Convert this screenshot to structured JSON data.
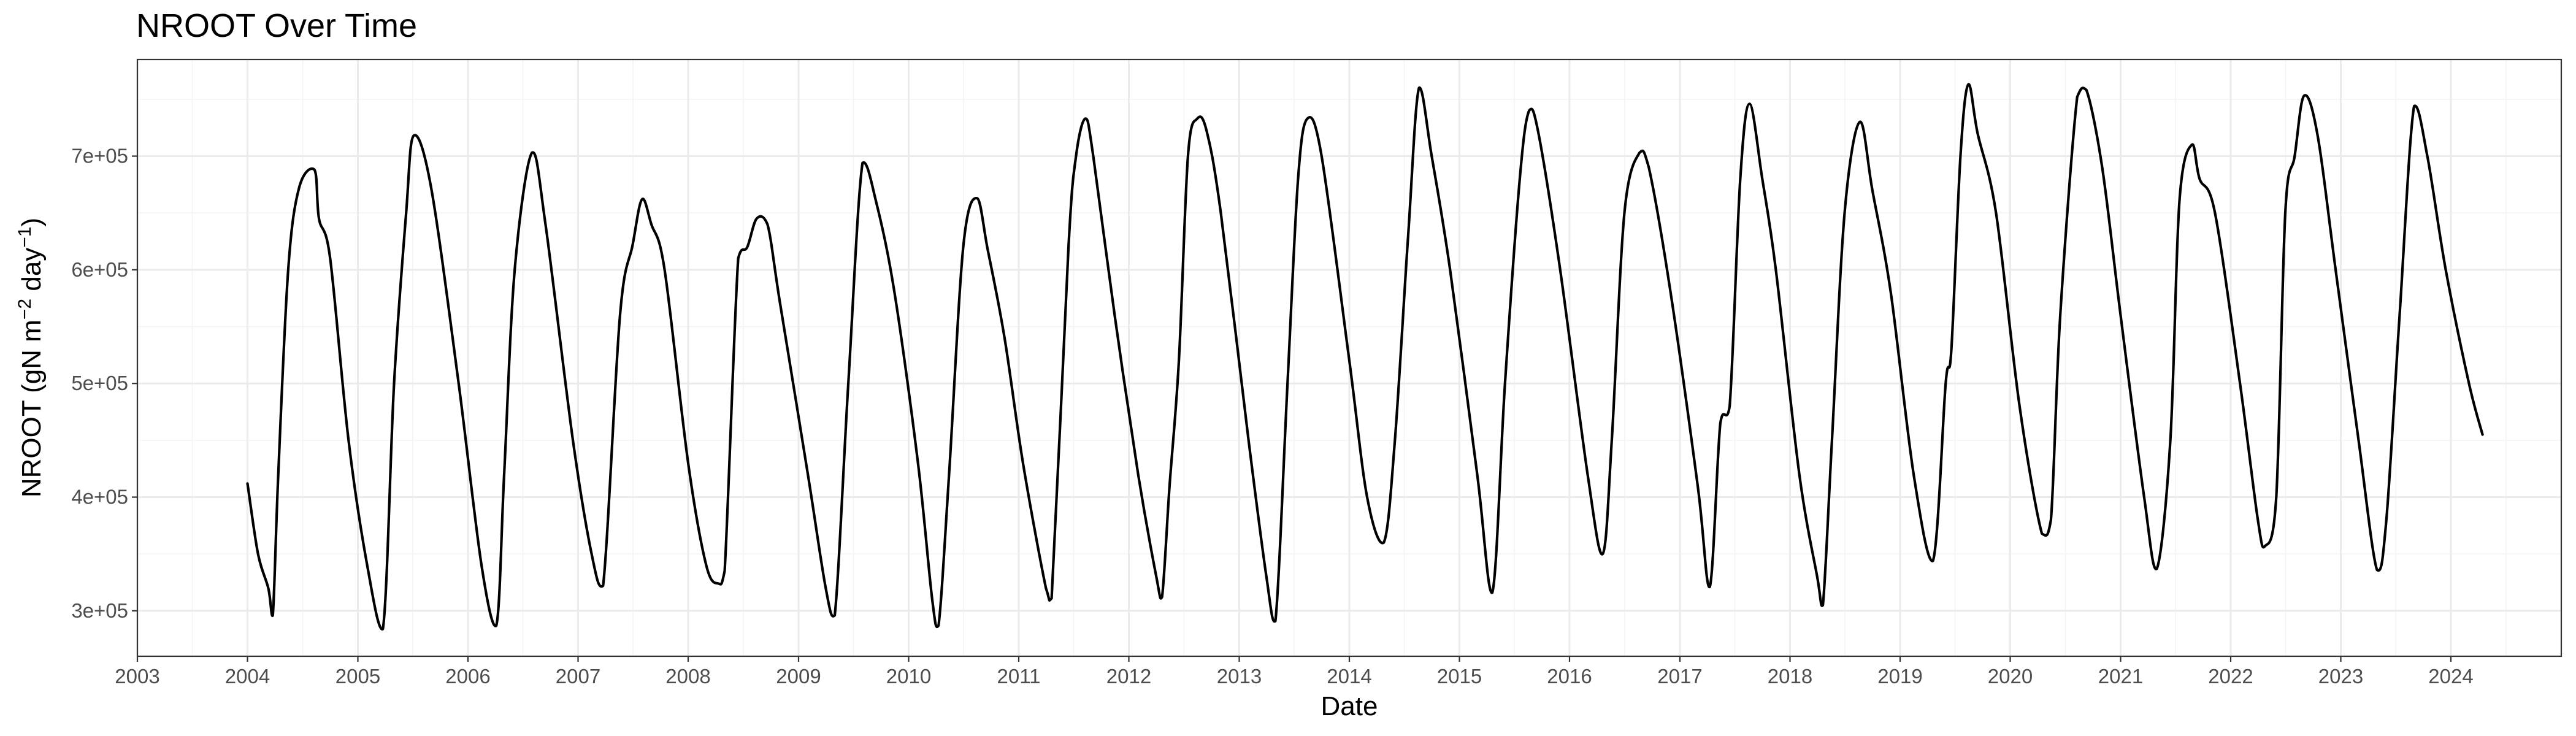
{
  "chart_data": {
    "type": "line",
    "title": "NROOT Over Time",
    "xlabel": "Date",
    "ylabel_parts": [
      "NROOT (gN m",
      "−2",
      " day",
      "−1",
      ")"
    ],
    "x_ticks": [
      "2003",
      "2004",
      "2005",
      "2006",
      "2007",
      "2008",
      "2009",
      "2010",
      "2011",
      "2012",
      "2013",
      "2014",
      "2015",
      "2016",
      "2017",
      "2018",
      "2019",
      "2020",
      "2021",
      "2022",
      "2023",
      "2024"
    ],
    "y_ticks": [
      {
        "value": 300000,
        "label": "3e+05"
      },
      {
        "value": 400000,
        "label": "4e+05"
      },
      {
        "value": 500000,
        "label": "5e+05"
      },
      {
        "value": 600000,
        "label": "6e+05"
      },
      {
        "value": 700000,
        "label": "7e+05"
      }
    ],
    "xlim": [
      "2003-01-01",
      "2024-12-31"
    ],
    "ylim": [
      260000,
      785000
    ],
    "grid": true,
    "line_color": "#000000",
    "series": [
      {
        "points": [
          [
            "2004-01-01",
            412000
          ],
          [
            "2004-02-05",
            350000
          ],
          [
            "2004-03-10",
            320000
          ],
          [
            "2004-03-25",
            296000
          ],
          [
            "2004-04-12",
            420000
          ],
          [
            "2004-05-15",
            600000
          ],
          [
            "2004-06-20",
            672000
          ],
          [
            "2004-08-10",
            688000
          ],
          [
            "2004-08-25",
            645000
          ],
          [
            "2004-10-01",
            610000
          ],
          [
            "2004-12-01",
            450000
          ],
          [
            "2005-02-01",
            340000
          ],
          [
            "2005-03-25",
            284000
          ],
          [
            "2005-05-01",
            500000
          ],
          [
            "2005-06-10",
            650000
          ],
          [
            "2005-07-05",
            718000
          ],
          [
            "2005-09-01",
            672000
          ],
          [
            "2005-12-01",
            500000
          ],
          [
            "2006-02-15",
            340000
          ],
          [
            "2006-04-05",
            287000
          ],
          [
            "2006-05-01",
            420000
          ],
          [
            "2006-06-05",
            600000
          ],
          [
            "2006-08-01",
            703000
          ],
          [
            "2006-09-15",
            640000
          ],
          [
            "2006-12-15",
            450000
          ],
          [
            "2007-02-15",
            350000
          ],
          [
            "2007-03-25",
            322000
          ],
          [
            "2007-05-20",
            560000
          ],
          [
            "2007-07-01",
            622000
          ],
          [
            "2007-08-01",
            662000
          ],
          [
            "2007-09-01",
            640000
          ],
          [
            "2007-10-15",
            600000
          ],
          [
            "2008-01-01",
            430000
          ],
          [
            "2008-03-01",
            340000
          ],
          [
            "2008-04-10",
            324000
          ],
          [
            "2008-05-01",
            335000
          ],
          [
            "2008-06-15",
            610000
          ],
          [
            "2008-07-15",
            620000
          ],
          [
            "2008-08-15",
            645000
          ],
          [
            "2008-09-20",
            640000
          ],
          [
            "2008-11-01",
            570000
          ],
          [
            "2009-02-01",
            420000
          ],
          [
            "2009-04-01",
            320000
          ],
          [
            "2009-05-01",
            296000
          ],
          [
            "2009-06-15",
            500000
          ],
          [
            "2009-08-01",
            694000
          ],
          [
            "2009-09-15",
            660000
          ],
          [
            "2009-11-15",
            580000
          ],
          [
            "2010-02-01",
            430000
          ],
          [
            "2010-03-20",
            310000
          ],
          [
            "2010-04-10",
            287000
          ],
          [
            "2010-05-15",
            420000
          ],
          [
            "2010-07-01",
            620000
          ],
          [
            "2010-08-15",
            663000
          ],
          [
            "2010-09-20",
            618000
          ],
          [
            "2010-11-15",
            540000
          ],
          [
            "2011-01-15",
            430000
          ],
          [
            "2011-04-01",
            320000
          ],
          [
            "2011-04-20",
            311000
          ],
          [
            "2011-06-15",
            620000
          ],
          [
            "2011-07-10",
            700000
          ],
          [
            "2011-08-10",
            733000
          ],
          [
            "2011-09-05",
            700000
          ],
          [
            "2011-11-15",
            560000
          ],
          [
            "2012-02-01",
            420000
          ],
          [
            "2012-04-01",
            330000
          ],
          [
            "2012-04-20",
            312000
          ],
          [
            "2012-05-15",
            410000
          ],
          [
            "2012-06-15",
            520000
          ],
          [
            "2012-07-15",
            700000
          ],
          [
            "2012-08-15",
            733000
          ],
          [
            "2012-09-15",
            722000
          ],
          [
            "2012-11-01",
            650000
          ],
          [
            "2013-02-01",
            450000
          ],
          [
            "2013-04-01",
            330000
          ],
          [
            "2013-05-01",
            291000
          ],
          [
            "2013-06-10",
            500000
          ],
          [
            "2013-07-15",
            680000
          ],
          [
            "2013-08-15",
            733000
          ],
          [
            "2013-10-01",
            700000
          ],
          [
            "2014-01-01",
            520000
          ],
          [
            "2014-03-01",
            400000
          ],
          [
            "2014-04-25",
            360000
          ],
          [
            "2014-06-01",
            450000
          ],
          [
            "2014-07-15",
            630000
          ],
          [
            "2014-08-20",
            760000
          ],
          [
            "2014-10-01",
            700000
          ],
          [
            "2014-12-01",
            600000
          ],
          [
            "2015-03-01",
            420000
          ],
          [
            "2015-04-20",
            316000
          ],
          [
            "2015-06-01",
            500000
          ],
          [
            "2015-07-20",
            680000
          ],
          [
            "2015-08-20",
            740000
          ],
          [
            "2015-09-20",
            720000
          ],
          [
            "2015-12-01",
            600000
          ],
          [
            "2016-03-01",
            420000
          ],
          [
            "2016-04-20",
            350000
          ],
          [
            "2016-05-20",
            450000
          ],
          [
            "2016-07-01",
            650000
          ],
          [
            "2016-08-20",
            703000
          ],
          [
            "2016-09-20",
            690000
          ],
          [
            "2016-12-01",
            580000
          ],
          [
            "2017-03-01",
            410000
          ],
          [
            "2017-04-10",
            321000
          ],
          [
            "2017-05-15",
            465000
          ],
          [
            "2017-06-15",
            480000
          ],
          [
            "2017-07-20",
            680000
          ],
          [
            "2017-08-20",
            746000
          ],
          [
            "2017-10-01",
            680000
          ],
          [
            "2017-11-15",
            600000
          ],
          [
            "2018-02-01",
            420000
          ],
          [
            "2018-04-01",
            330000
          ],
          [
            "2018-04-20",
            305000
          ],
          [
            "2018-05-20",
            450000
          ],
          [
            "2018-07-01",
            650000
          ],
          [
            "2018-08-20",
            730000
          ],
          [
            "2018-10-01",
            670000
          ],
          [
            "2018-12-01",
            580000
          ],
          [
            "2019-02-15",
            420000
          ],
          [
            "2019-04-20",
            344000
          ],
          [
            "2019-06-01",
            500000
          ],
          [
            "2019-06-20",
            530000
          ],
          [
            "2019-07-20",
            700000
          ],
          [
            "2019-08-15",
            763000
          ],
          [
            "2019-09-15",
            720000
          ],
          [
            "2019-11-15",
            650000
          ],
          [
            "2020-02-01",
            480000
          ],
          [
            "2020-04-15",
            368000
          ],
          [
            "2020-05-15",
            380000
          ],
          [
            "2020-06-15",
            560000
          ],
          [
            "2020-08-10",
            752000
          ],
          [
            "2020-09-10",
            758000
          ],
          [
            "2020-11-01",
            690000
          ],
          [
            "2021-01-01",
            560000
          ],
          [
            "2021-03-20",
            400000
          ],
          [
            "2021-05-01",
            337000
          ],
          [
            "2021-06-15",
            450000
          ],
          [
            "2021-07-15",
            660000
          ],
          [
            "2021-08-25",
            710000
          ],
          [
            "2021-09-20",
            680000
          ],
          [
            "2021-11-10",
            650000
          ],
          [
            "2022-02-01",
            500000
          ],
          [
            "2022-04-01",
            380000
          ],
          [
            "2022-04-25",
            357000
          ],
          [
            "2022-06-01",
            400000
          ],
          [
            "2022-07-01",
            650000
          ],
          [
            "2022-08-01",
            700000
          ],
          [
            "2022-09-01",
            753000
          ],
          [
            "2022-10-15",
            720000
          ],
          [
            "2022-12-15",
            600000
          ],
          [
            "2023-03-01",
            450000
          ],
          [
            "2023-05-01",
            336000
          ],
          [
            "2023-06-01",
            380000
          ],
          [
            "2023-07-15",
            560000
          ],
          [
            "2023-09-01",
            744000
          ],
          [
            "2023-10-15",
            700000
          ],
          [
            "2023-12-15",
            600000
          ],
          [
            "2024-03-01",
            500000
          ],
          [
            "2024-04-15",
            455000
          ]
        ]
      }
    ]
  }
}
